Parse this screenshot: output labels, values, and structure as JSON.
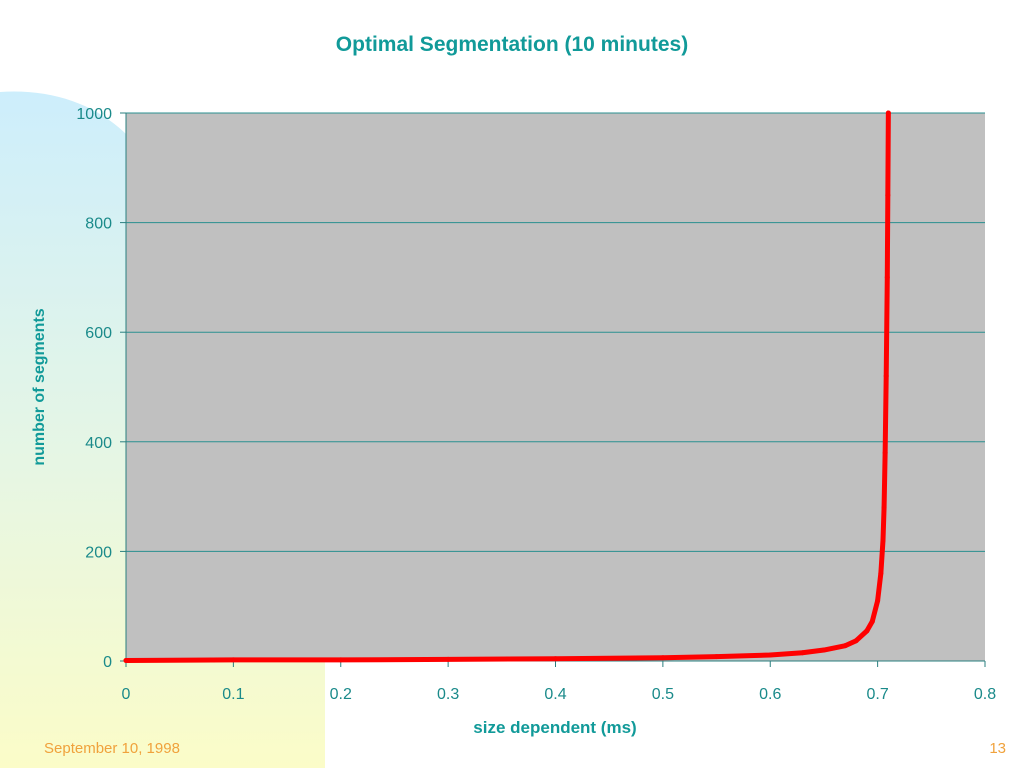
{
  "slide": {
    "footer_date": "September 10, 1998",
    "page_number": "13",
    "accent_color": "#119a99",
    "footer_color": "#f0a23c"
  },
  "chart_data": {
    "type": "line",
    "title": "Optimal Segmentation (10 minutes)",
    "xlabel": "size dependent (ms)",
    "ylabel": "number of segments",
    "xlim": [
      0,
      0.8
    ],
    "ylim": [
      0,
      1000
    ],
    "x_ticks": [
      "0",
      "0.1",
      "0.2",
      "0.3",
      "0.4",
      "0.5",
      "0.6",
      "0.7",
      "0.8"
    ],
    "y_ticks": [
      "0",
      "200",
      "400",
      "600",
      "800",
      "1000"
    ],
    "grid": "horizontal",
    "plot_background": "#c0c0c0",
    "line_color": "#ff0000",
    "series": [
      {
        "x": [
          0,
          0.1,
          0.2,
          0.3,
          0.4,
          0.5,
          0.55,
          0.6,
          0.63,
          0.65,
          0.67,
          0.68,
          0.69,
          0.695,
          0.7,
          0.703,
          0.705,
          0.706,
          0.707,
          0.708,
          0.709,
          0.7095,
          0.71
        ],
        "y": [
          1,
          2,
          2,
          3,
          4,
          6,
          8,
          11,
          15,
          20,
          28,
          37,
          55,
          72,
          110,
          160,
          220,
          280,
          380,
          520,
          700,
          850,
          1000
        ]
      }
    ]
  }
}
